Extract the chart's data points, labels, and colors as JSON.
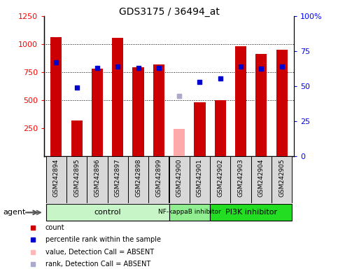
{
  "title": "GDS3175 / 36494_at",
  "samples": [
    "GSM242894",
    "GSM242895",
    "GSM242896",
    "GSM242897",
    "GSM242898",
    "GSM242899",
    "GSM242900",
    "GSM242901",
    "GSM242902",
    "GSM242903",
    "GSM242904",
    "GSM242905"
  ],
  "counts": [
    1065,
    320,
    780,
    1055,
    795,
    820,
    240,
    480,
    500,
    980,
    910,
    950
  ],
  "counts_absent": [
    false,
    false,
    false,
    false,
    false,
    false,
    true,
    false,
    false,
    false,
    false,
    false
  ],
  "ranks": [
    840,
    610,
    790,
    800,
    790,
    790,
    null,
    660,
    690,
    800,
    780,
    800
  ],
  "ranks_absent": [
    false,
    false,
    false,
    false,
    false,
    false,
    false,
    false,
    false,
    false,
    false,
    false
  ],
  "absent_value": 535,
  "absent_rank": 535,
  "groups": [
    {
      "label": "control",
      "start": 0,
      "end": 5,
      "color": "#c8f5c8"
    },
    {
      "label": "NF-kappaB inhibitor",
      "start": 6,
      "end": 7,
      "color": "#90ee90"
    },
    {
      "label": "PI3K inhibitor",
      "start": 8,
      "end": 11,
      "color": "#22dd22"
    }
  ],
  "bar_color": "#cc0000",
  "absent_bar_color": "#ffaaaa",
  "rank_color": "#0000cc",
  "absent_rank_color": "#aaaacc",
  "ylim_left": [
    0,
    1250
  ],
  "ylim_right": [
    0,
    100
  ],
  "yticks_left": [
    250,
    500,
    750,
    1000,
    1250
  ],
  "yticks_right": [
    0,
    25,
    50,
    75,
    100
  ],
  "ytick_right_labels": [
    "0",
    "25",
    "50",
    "75",
    "100%"
  ],
  "background_color": "#ffffff",
  "agent_label": "agent",
  "legend_items": [
    {
      "color": "#cc0000",
      "label": "count"
    },
    {
      "color": "#0000cc",
      "label": "percentile rank within the sample"
    },
    {
      "color": "#ffb8b8",
      "label": "value, Detection Call = ABSENT"
    },
    {
      "color": "#aaaacc",
      "label": "rank, Detection Call = ABSENT"
    }
  ]
}
